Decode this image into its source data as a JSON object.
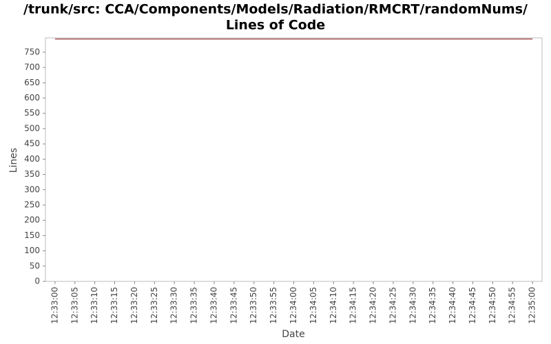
{
  "chart_data": {
    "type": "line",
    "title": "/trunk/src: CCA/Components/Models/Radiation/RMCRT/randomNums/",
    "subtitle": "Lines of Code",
    "x_label": "Date",
    "y_label": "Lines",
    "x": [
      "12:33:00",
      "12:35:00"
    ],
    "values": [
      793,
      793
    ],
    "color": "#800000",
    "xlim": [
      "12:32:57.6",
      "12:35:02.4"
    ],
    "xticks": [
      "12:33:00",
      "12:33:05",
      "12:33:10",
      "12:33:15",
      "12:33:20",
      "12:33:25",
      "12:33:30",
      "12:33:35",
      "12:33:40",
      "12:33:45",
      "12:33:50",
      "12:33:55",
      "12:34:00",
      "12:34:05",
      "12:34:10",
      "12:34:15",
      "12:34:20",
      "12:34:25",
      "12:34:30",
      "12:34:35",
      "12:34:40",
      "12:34:45",
      "12:34:50",
      "12:34:55",
      "12:35:00"
    ],
    "ylim": [
      0,
      797
    ],
    "yticks": [
      0,
      50,
      100,
      150,
      200,
      250,
      300,
      350,
      400,
      450,
      500,
      550,
      600,
      650,
      700,
      750
    ],
    "grid": false
  }
}
